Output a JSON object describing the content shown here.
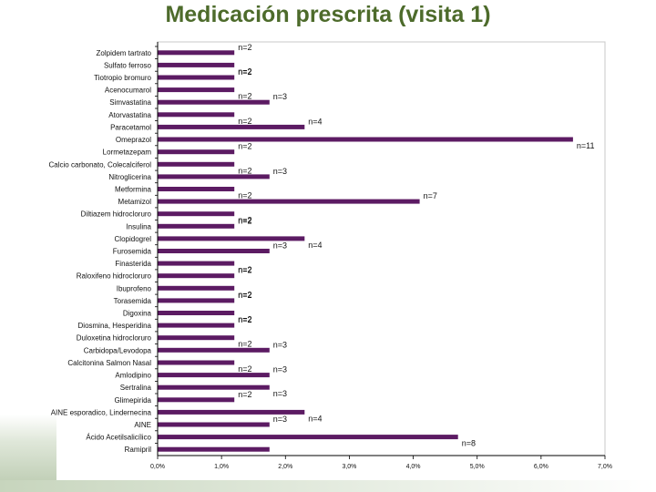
{
  "page": {
    "title": "Medicación prescrita (visita 1)"
  },
  "colors": {
    "bar": "#5c1b63",
    "axis": "#000000",
    "plot_border": "#c8c8c8",
    "title": "#4d6b2b"
  },
  "chart_data": {
    "type": "bar",
    "orientation": "horizontal",
    "title": "Medicación prescrita (visita 1)",
    "xlabel": "",
    "ylabel": "",
    "xlim": [
      0,
      7
    ],
    "x_ticks": [
      "0,0%",
      "1,0%",
      "2,0%",
      "3,0%",
      "4,0%",
      "5,0%",
      "6,0%",
      "7,0%"
    ],
    "grid": false,
    "legend": "none",
    "categories": [
      "Zolpidem tartrato",
      "Sulfato ferroso",
      "Tiotropio bromuro",
      "Acenocumarol",
      "Simvastatina",
      "Atorvastatina",
      "Paracetamol",
      "Omeprazol",
      "Lormetazepam",
      "Calcio carbonato, Colecalciferol",
      "Nitroglicerina",
      "Metformina",
      "Metamizol",
      "Diltiazem hidrocloruro",
      "Insulina",
      "Clopidogrel",
      "Furosemida",
      "Finasterida",
      "Raloxifeno hidrocloruro",
      "Ibuprofeno",
      "Torasemida",
      "Digoxina",
      "Diosmina, Hesperidina",
      "Duloxetina hidrocloruro",
      "Carbidopa/Levodopa",
      "Calcitonina Salmon Nasal",
      "Amlodipino",
      "Sertralina",
      "Glimepirida",
      "AINE esporadico, Lindernecina",
      "AINE",
      "Ácido Acetilsalicílico",
      "Ramipril"
    ],
    "values": [
      1.2,
      1.2,
      1.2,
      1.2,
      1.75,
      1.2,
      2.3,
      6.5,
      1.2,
      1.2,
      1.75,
      1.2,
      4.1,
      1.2,
      1.2,
      2.3,
      1.75,
      1.2,
      1.2,
      1.2,
      1.2,
      1.2,
      1.2,
      1.2,
      1.75,
      1.2,
      1.75,
      1.75,
      1.2,
      2.3,
      1.75,
      4.7,
      1.75
    ],
    "data_labels": [
      "n=2",
      "n=2",
      "n=2",
      "n=2",
      "n=3",
      "n=2",
      "n=4",
      "n=11",
      "n=2",
      "n=2",
      "n=3",
      "n=2",
      "n=7",
      "n=2",
      "n=2",
      "n=4",
      "n=3",
      "n=2",
      "n=2",
      "n=2",
      "n=2",
      "n=2",
      "n=2",
      "n=2",
      "n=3",
      "n=2",
      "n=3",
      "n=3",
      "n=2",
      "n=4",
      "n=3",
      "n=8",
      ""
    ]
  }
}
